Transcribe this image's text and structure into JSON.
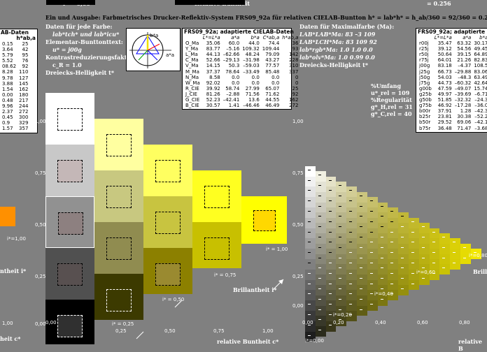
{
  "title": "Ein und Ausgabe: Farbmetrisches Drucker-Reflektiv-System FRS09_92a für relativen CIELAB-Buntton h* = lab*h* = h_ab/360 = 92/360 = 0.256",
  "top_left_label": "i* = 0,00",
  "top_center_label": "Relative Buntheit",
  "top_right_label": "= 0.256",
  "left": {
    "line1": "Daten für jede Farbe:",
    "line2": "lab*tch* und lab*icu*",
    "line3": "Elementar-Bunttonttext:",
    "line4": "u* = j00g",
    "line5": "Kontrastreduzierungsfaktor:",
    "line6": "c_R = 1.0",
    "line7": "Dreiecks-Helligkeit t*"
  },
  "right": {
    "line1": "Daten für Maximalfarbe (Ma):",
    "line2": "LAB*LAB*Ma: 83 –3 109",
    "line3": "LAB*LCH*Ma: 83 109 92",
    "line4": "lab*rgb*Ma: 1.0 1.0 0.0",
    "line5": "lab*olv*Ma: 1.0 0.99 0.0",
    "line6": "Dreiecks-Helligkeit t*",
    "umfang_title": "%Umfang",
    "umfang": "u*_rel = 109",
    "regul_title": "%Regularität",
    "regul1": "g*_H,rel = 31",
    "regul2": "g*_C,rel = 40"
  },
  "table_left_frag": {
    "head1": "AB-Daten",
    "head2": "h*ab,a",
    "rows": [
      [
        "0.15",
        "25"
      ],
      [
        "3.64",
        "42"
      ],
      [
        "5.79",
        "95"
      ],
      [
        "5.52",
        "76"
      ],
      [
        "08.62",
        "92"
      ],
      [
        "8.28",
        "110"
      ],
      [
        "9.78",
        "127"
      ],
      [
        "3.88",
        "145"
      ],
      [
        "1.54",
        "162"
      ],
      [
        "0.00",
        "180"
      ],
      [
        "0.48",
        "217"
      ],
      [
        "9.96",
        "244"
      ],
      [
        "2.37",
        "272"
      ],
      [
        "0.45",
        "300"
      ],
      [
        "0.9",
        "329"
      ],
      [
        "1.57",
        "357"
      ]
    ]
  },
  "table_center": {
    "head1": "FRS09_92a; adaptierte CIELAB-Daten",
    "head2": [
      "L*=L*a",
      "a*a",
      "b*a",
      "C*ab,a",
      "h*ab,a"
    ],
    "rows": [
      [
        "O_Ma",
        "35.06",
        "60.0",
        "44.0",
        "74.4",
        "36"
      ],
      [
        "Y_Ma",
        "83.77",
        "–5.16",
        "109.32",
        "109.44",
        "93"
      ],
      [
        "L_Ma",
        "44.13",
        "–62.66",
        "48.24",
        "79.09",
        "142"
      ],
      [
        "C_Ma",
        "52.66",
        "–29.13",
        "–31.98",
        "43.27",
        "228"
      ],
      [
        "V_Ma",
        "14.15",
        "50.3",
        "–59.03",
        "77.57",
        "310"
      ],
      [
        "M_Ma",
        "37.37",
        "78.64",
        "–33.49",
        "85.48",
        "337"
      ],
      [
        "N_Ma",
        "8.58",
        "0.0",
        "0.0",
        "0.0",
        "0"
      ],
      [
        "W_Ma",
        "92.02",
        "0.0",
        "0.0",
        "0.0",
        "0"
      ],
      [
        "R_CIE",
        "39.92",
        "58.74",
        "27.99",
        "65.07",
        "25"
      ],
      [
        "J_CIE",
        "81.26",
        "–2.88",
        "71.56",
        "71.62",
        "92"
      ],
      [
        "G_CIE",
        "52.23",
        "–42.41",
        "13.6",
        "44.55",
        "162"
      ],
      [
        "B_CIE",
        "30.57",
        "1.41",
        "–46.46",
        "46.49",
        "272"
      ]
    ]
  },
  "table_right": {
    "head1": "FRS09_92a; adaptierte CIE",
    "head2": [
      "L*=L*a",
      "a*a",
      "b*a"
    ],
    "rows": [
      [
        "r00j",
        "35.47",
        "63.32",
        "30.17"
      ],
      [
        "r25j",
        "39.12",
        "54.56",
        "49.45"
      ],
      [
        "r50j",
        "50.64",
        "39.15",
        "64.89"
      ],
      [
        "r75j",
        "64.01",
        "21.26",
        "82.83"
      ],
      [
        "j00g",
        "83.18",
        "–4.37",
        "108.5"
      ],
      [
        "j25g",
        "66.73",
        "–29.88",
        "83.06"
      ],
      [
        "j50g",
        "54.03",
        "–48.3",
        "63.49"
      ],
      [
        "j75g",
        "44.73",
        "–60.32",
        "42.64"
      ],
      [
        "g00b",
        "47.59",
        "–49.07",
        "15.74"
      ],
      [
        "g25b",
        "49.97",
        "–39.69",
        "–6.71"
      ],
      [
        "g50b",
        "51.85",
        "–32.32",
        "–24.3"
      ],
      [
        "g75b",
        "46.92",
        "–17.28",
        "–36.0"
      ],
      [
        "b00r",
        "37.91",
        "1.28",
        "–42.3"
      ],
      [
        "b25r",
        "23.81",
        "30.38",
        "–52.2"
      ],
      [
        "b50r",
        "29.52",
        "69.06",
        "–42.1"
      ],
      [
        "b75r",
        "36.48",
        "71.47",
        "–3.68"
      ]
    ]
  },
  "labels": {
    "i100_left": "i*=1,00",
    "brill_left": "ntheit i*",
    "bunt_left": "heit c*",
    "i025": "i* = 0,25",
    "i050": "i* = 0,50",
    "i075": "i* = 0,75",
    "i100": "i* = 1,00",
    "brill": "Brillantheit i*",
    "rel_bunt": "relative Buntheit c*",
    "i020": "i*=0,20",
    "i040": "i*=0,40",
    "i060": "i*=0,60",
    "i080": "i*=0,80",
    "brill_r": "Brill",
    "rel_bunt_r": "relative B",
    "i000_r": "i*=0,00",
    "hue_a": "a*a",
    "hue_b": "b*a"
  },
  "axis_left": [
    "1,00",
    "0,75",
    "0,50",
    "0,25",
    "0,00"
  ],
  "axis_bottom": [
    "0,00",
    "0,25",
    "0,50",
    "0,75",
    "1,00"
  ],
  "axis_right_left": [
    "1,00",
    "0,75",
    "0,50",
    "0,25",
    "0,00"
  ],
  "axis_bottom_right": [
    "0,00",
    "0,20",
    "0,40",
    "0,60",
    "0,80"
  ],
  "axis_edge_left": "1,00"
}
